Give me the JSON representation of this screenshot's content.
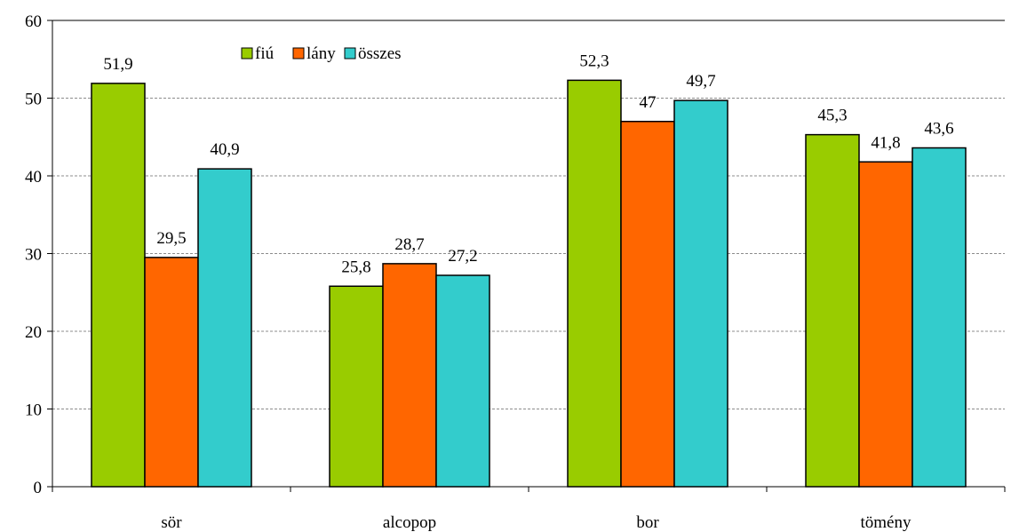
{
  "chart_data": {
    "type": "bar",
    "title": "",
    "xlabel": "",
    "ylabel": "",
    "ylim": [
      0,
      60
    ],
    "yticks": [
      "0",
      "10",
      "20",
      "30",
      "40",
      "50",
      "60"
    ],
    "grid": true,
    "legend_position": "top-center",
    "categories": [
      "sör",
      "alcopop",
      "bor",
      "tömény"
    ],
    "series": [
      {
        "name": "fiú",
        "color": "#99cc00",
        "values": [
          51.9,
          25.8,
          52.3,
          45.3
        ],
        "labels": [
          "51,9",
          "25,8",
          "52,3",
          "45,3"
        ]
      },
      {
        "name": "lány",
        "color": "#ff6600",
        "values": [
          29.5,
          28.7,
          47,
          41.8
        ],
        "labels": [
          "29,5",
          "28,7",
          "47",
          "41,8"
        ]
      },
      {
        "name": "összes",
        "color": "#33cccc",
        "values": [
          40.9,
          27.2,
          49.7,
          43.6
        ],
        "labels": [
          "40,9",
          "27,2",
          "49,7",
          "43,6"
        ]
      }
    ]
  }
}
